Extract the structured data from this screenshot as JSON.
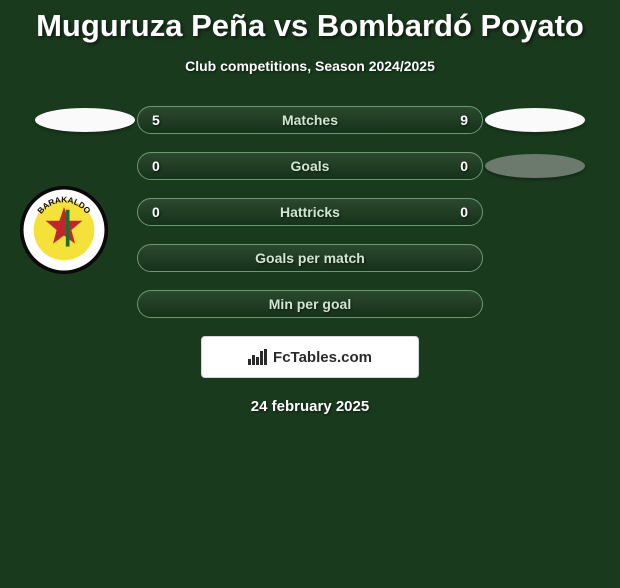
{
  "colors": {
    "background": "#1a3a1e",
    "pill_border": "#6a9a6e",
    "pill_label": "#cfe6d0",
    "text_shadow": "rgba(0,0,0,0.5)",
    "credit_bg": "#ffffff",
    "credit_text": "#2a2a2a"
  },
  "title": "Muguruza Peña vs Bombardó Poyato",
  "subtitle": "Club competitions, Season 2024/2025",
  "rows": [
    {
      "label": "Matches",
      "left": "5",
      "right": "9",
      "left_icon": "ellipse-white",
      "right_icon": "ellipse-white"
    },
    {
      "label": "Goals",
      "left": "0",
      "right": "0",
      "left_icon": null,
      "right_icon": "ellipse-gray"
    },
    {
      "label": "Hattricks",
      "left": "0",
      "right": "0",
      "left_icon": null,
      "right_icon": null
    },
    {
      "label": "Goals per match",
      "left": "",
      "right": "",
      "left_icon": null,
      "right_icon": null
    },
    {
      "label": "Min per goal",
      "left": "",
      "right": "",
      "left_icon": null,
      "right_icon": null
    }
  ],
  "club_badge": {
    "outer": "#0a0a0a",
    "inner": "#f4e23a",
    "band": "#ffffff",
    "label_top": "BARAKALDO"
  },
  "credit": {
    "text": "FcTables.com"
  },
  "date": "24 february 2025"
}
